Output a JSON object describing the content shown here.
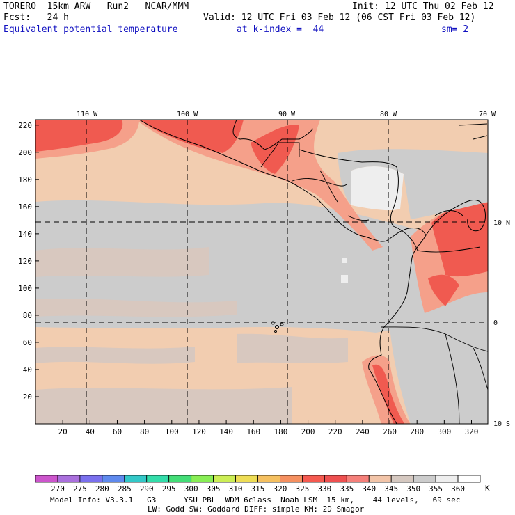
{
  "header": {
    "model_line": "TORERO  15km ARW   Run2   NCAR/MMM",
    "init": "Init: 12 UTC Thu 02 Feb 12",
    "fcst": "Fcst:   24 h",
    "valid": "Valid: 12 UTC Fri 03 Feb 12 (06 CST Fri 03 Feb 12)",
    "field": "Equivalent potential temperature",
    "level": "at k-index =  44",
    "smooth": "sm= 2"
  },
  "map": {
    "top_lon_labels": [
      "110 W",
      "100 W",
      "90 W",
      "80 W",
      "70 W"
    ],
    "right_lat_labels": [
      "10 N",
      "0",
      "10 S"
    ],
    "y_ticks": [
      "20",
      "40",
      "60",
      "80",
      "100",
      "120",
      "140",
      "160",
      "180",
      "200",
      "220"
    ],
    "x_ticks": [
      "20",
      "40",
      "60",
      "80",
      "100",
      "120",
      "140",
      "160",
      "180",
      "200",
      "220",
      "240",
      "260",
      "280",
      "300",
      "320"
    ]
  },
  "colorbar": {
    "labels": [
      "270",
      "275",
      "280",
      "285",
      "290",
      "295",
      "300",
      "305",
      "310",
      "315",
      "320",
      "325",
      "330",
      "335",
      "340",
      "345",
      "350",
      "355",
      "360"
    ],
    "unit": "K",
    "colors": [
      "#cc55cc",
      "#aa70dd",
      "#7a70ee",
      "#5f8aee",
      "#33c8c8",
      "#33ddaa",
      "#44dd77",
      "#88ee55",
      "#ccee55",
      "#eedd55",
      "#f5c060",
      "#f59060",
      "#f55a50",
      "#ee5050",
      "#f5807a",
      "#f2c4a8",
      "#d5c8c0",
      "#cccccc",
      "#eeeeee",
      "#ffffff"
    ]
  },
  "footer": {
    "line1": "Model Info: V3.3.1   G3      YSU PBL  WDM 6class  Noah LSM  15 km,    44 levels,   69 sec",
    "line2": "LW: Godd SW: Goddard DIFF: simple KM: 2D Smagor"
  },
  "colors": {
    "bg_tan": "#f2cdb0",
    "gray": "#cccccc",
    "gray_brown": "#d8c8bf",
    "salmon": "#f5a08a",
    "red": "#f05a50",
    "light": "#eeeeee",
    "title_blue": "#1010c0"
  }
}
